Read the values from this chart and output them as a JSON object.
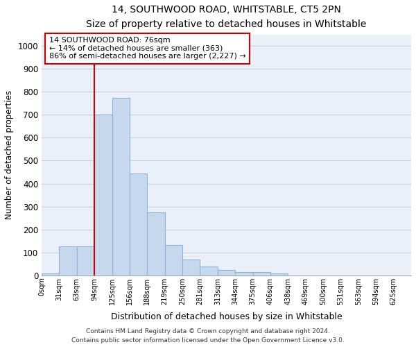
{
  "title": "14, SOUTHWOOD ROAD, WHITSTABLE, CT5 2PN",
  "subtitle": "Size of property relative to detached houses in Whitstable",
  "xlabel": "Distribution of detached houses by size in Whitstable",
  "ylabel": "Number of detached properties",
  "bar_labels": [
    "0sqm",
    "31sqm",
    "63sqm",
    "94sqm",
    "125sqm",
    "156sqm",
    "188sqm",
    "219sqm",
    "250sqm",
    "281sqm",
    "313sqm",
    "344sqm",
    "375sqm",
    "406sqm",
    "438sqm",
    "469sqm",
    "500sqm",
    "531sqm",
    "563sqm",
    "594sqm",
    "625sqm"
  ],
  "bar_values": [
    8,
    125,
    125,
    700,
    775,
    443,
    275,
    133,
    70,
    38,
    23,
    13,
    13,
    8,
    0,
    0,
    0,
    0,
    0,
    0,
    0
  ],
  "bar_color": "#c5d8ed",
  "bar_edge_color": "#8ab4d8",
  "ylim": [
    0,
    1050
  ],
  "yticks": [
    0,
    100,
    200,
    300,
    400,
    500,
    600,
    700,
    800,
    900,
    1000
  ],
  "grid_color": "#c8d4e4",
  "bg_color": "#eaeff8",
  "property_line_index": 3,
  "annotation_line1": "14 SOUTHWOOD ROAD: 76sqm",
  "annotation_line2": "← 14% of detached houses are smaller (363)",
  "annotation_line3": "86% of semi-detached houses are larger (2,227) →",
  "annotation_box_color": "#cc0000",
  "footer_line1": "Contains HM Land Registry data © Crown copyright and database right 2024.",
  "footer_line2": "Contains public sector information licensed under the Open Government Licence v3.0."
}
